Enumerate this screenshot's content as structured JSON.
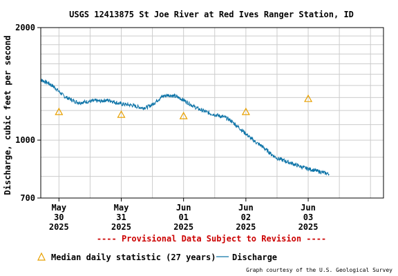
{
  "chart_data": {
    "type": "line",
    "title": "USGS 12413875 St Joe River at Red Ives Ranger Station, ID",
    "ylabel": "Discharge, cubic feet per second",
    "yscale": "log",
    "ylim": [
      700,
      2000
    ],
    "y_ticks": [
      {
        "value": 700,
        "label": "700"
      },
      {
        "value": 1000,
        "label": "1000"
      },
      {
        "value": 2000,
        "label": "2000"
      }
    ],
    "xlim": [
      "2025-05-29T17:00",
      "2025-06-04T05:00"
    ],
    "x_ticks": [
      {
        "at": "2025-05-30T00:00",
        "lines": [
          "May",
          "30",
          "2025"
        ]
      },
      {
        "at": "2025-05-31T00:00",
        "lines": [
          "May",
          "31",
          "2025"
        ]
      },
      {
        "at": "2025-06-01T00:00",
        "lines": [
          "Jun",
          "01",
          "2025"
        ]
      },
      {
        "at": "2025-06-02T00:00",
        "lines": [
          "Jun",
          "02",
          "2025"
        ]
      },
      {
        "at": "2025-06-03T00:00",
        "lines": [
          "Jun",
          "03",
          "2025"
        ]
      }
    ],
    "grid": true,
    "series": [
      {
        "name": "Discharge",
        "color": "#0e74a8",
        "points": [
          [
            "2025-05-29T17:00",
            1450
          ],
          [
            "2025-05-29T18:00",
            1440
          ],
          [
            "2025-05-29T20:00",
            1420
          ],
          [
            "2025-05-29T22:00",
            1390
          ],
          [
            "2025-05-30T00:00",
            1350
          ],
          [
            "2025-05-30T02:00",
            1310
          ],
          [
            "2025-05-30T04:00",
            1290
          ],
          [
            "2025-05-30T06:00",
            1270
          ],
          [
            "2025-05-30T08:00",
            1260
          ],
          [
            "2025-05-30T10:00",
            1265
          ],
          [
            "2025-05-30T12:00",
            1270
          ],
          [
            "2025-05-30T14:00",
            1275
          ],
          [
            "2025-05-30T16:00",
            1270
          ],
          [
            "2025-05-30T18:00",
            1280
          ],
          [
            "2025-05-30T20:00",
            1275
          ],
          [
            "2025-05-30T22:00",
            1260
          ],
          [
            "2025-05-31T00:00",
            1250
          ],
          [
            "2025-05-31T02:00",
            1245
          ],
          [
            "2025-05-31T04:00",
            1240
          ],
          [
            "2025-05-31T06:00",
            1230
          ],
          [
            "2025-05-31T08:00",
            1220
          ],
          [
            "2025-05-31T10:00",
            1225
          ],
          [
            "2025-05-31T12:00",
            1245
          ],
          [
            "2025-05-31T14:00",
            1280
          ],
          [
            "2025-05-31T16:00",
            1310
          ],
          [
            "2025-05-31T18:00",
            1320
          ],
          [
            "2025-05-31T20:00",
            1315
          ],
          [
            "2025-05-31T22:00",
            1300
          ],
          [
            "2025-06-01T00:00",
            1280
          ],
          [
            "2025-06-01T02:00",
            1255
          ],
          [
            "2025-06-01T04:00",
            1230
          ],
          [
            "2025-06-01T06:00",
            1210
          ],
          [
            "2025-06-01T08:00",
            1195
          ],
          [
            "2025-06-01T10:00",
            1180
          ],
          [
            "2025-06-01T12:00",
            1170
          ],
          [
            "2025-06-01T14:00",
            1160
          ],
          [
            "2025-06-01T16:00",
            1150
          ],
          [
            "2025-06-01T18:00",
            1130
          ],
          [
            "2025-06-01T20:00",
            1100
          ],
          [
            "2025-06-01T22:00",
            1070
          ],
          [
            "2025-06-02T00:00",
            1040
          ],
          [
            "2025-06-02T02:00",
            1010
          ],
          [
            "2025-06-02T04:00",
            985
          ],
          [
            "2025-06-02T06:00",
            965
          ],
          [
            "2025-06-02T08:00",
            940
          ],
          [
            "2025-06-02T10:00",
            915
          ],
          [
            "2025-06-02T12:00",
            895
          ],
          [
            "2025-06-02T14:00",
            885
          ],
          [
            "2025-06-02T16:00",
            875
          ],
          [
            "2025-06-02T18:00",
            865
          ],
          [
            "2025-06-02T20:00",
            855
          ],
          [
            "2025-06-02T22:00",
            845
          ],
          [
            "2025-06-03T00:00",
            838
          ],
          [
            "2025-06-03T02:00",
            832
          ],
          [
            "2025-06-03T04:00",
            825
          ],
          [
            "2025-06-03T06:00",
            818
          ],
          [
            "2025-06-03T08:00",
            812
          ]
        ]
      },
      {
        "name": "Median daily statistic (27 years)",
        "color": "#e8a000",
        "marker": "triangle",
        "points": [
          [
            "2025-05-30T00:00",
            1190
          ],
          [
            "2025-05-31T00:00",
            1170
          ],
          [
            "2025-06-01T00:00",
            1160
          ],
          [
            "2025-06-02T00:00",
            1190
          ],
          [
            "2025-06-03T00:00",
            1290
          ]
        ]
      }
    ],
    "annotation": "---- Provisional Data Subject to Revision ----",
    "legend": {
      "position": "bottom",
      "median_label": "Median daily statistic (27 years)",
      "discharge_label": "Discharge"
    },
    "credit": "Graph courtesy of the U.S. Geological Survey"
  },
  "colors": {
    "frame": "#000000",
    "grid": "#cccccc",
    "annotation": "#cc0000"
  }
}
